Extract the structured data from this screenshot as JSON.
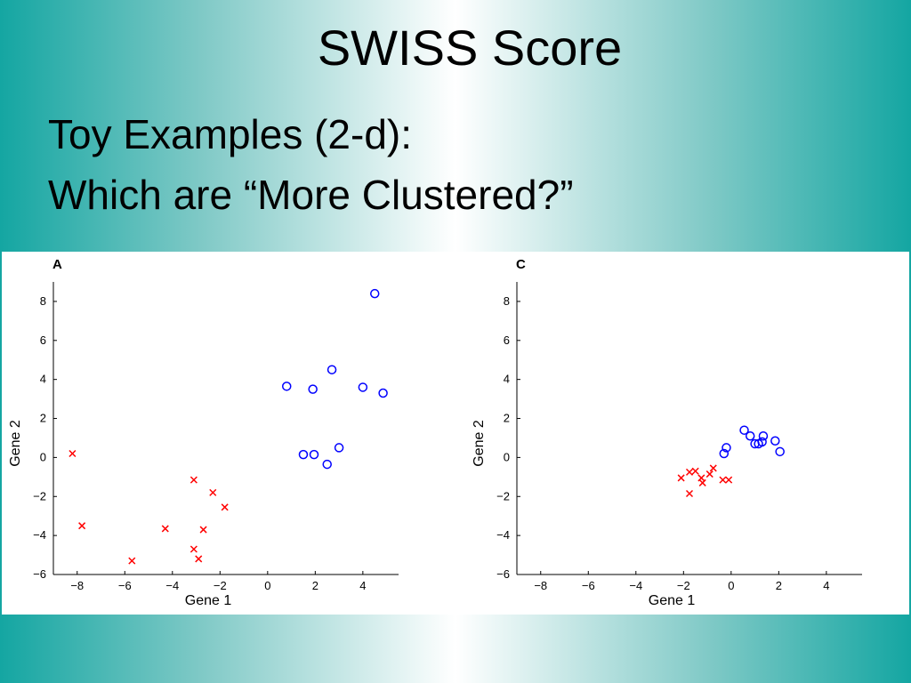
{
  "slide": {
    "title": "SWISS Score",
    "subtitle_line1": "Toy Examples  (2-d):",
    "subtitle_line2": "Which are “More Clustered?”"
  },
  "colors": {
    "cluster1": "#0000ff",
    "cluster2": "#ff0000",
    "background_edge": "#14a6a2"
  },
  "chart_data": [
    {
      "type": "scatter",
      "panel_label": "A",
      "xlabel": "Gene 1",
      "ylabel": "Gene 2",
      "xlim": [
        -9,
        5.5
      ],
      "ylim": [
        -6,
        9
      ],
      "xticks": [
        -8,
        -6,
        -4,
        -2,
        0,
        2,
        4
      ],
      "yticks": [
        -6,
        -4,
        -2,
        0,
        2,
        4,
        6,
        8
      ],
      "grid": false,
      "series": [
        {
          "marker": "circle",
          "color": "#0000ff",
          "points": [
            [
              4.5,
              8.4
            ],
            [
              0.8,
              3.65
            ],
            [
              1.9,
              3.5
            ],
            [
              2.7,
              4.5
            ],
            [
              4.0,
              3.6
            ],
            [
              4.85,
              3.3
            ],
            [
              1.5,
              0.15
            ],
            [
              1.95,
              0.15
            ],
            [
              2.5,
              -0.35
            ],
            [
              3.0,
              0.5
            ]
          ]
        },
        {
          "marker": "x",
          "color": "#ff0000",
          "points": [
            [
              -8.2,
              0.2
            ],
            [
              -7.8,
              -3.5
            ],
            [
              -5.7,
              -5.3
            ],
            [
              -4.3,
              -3.65
            ],
            [
              -3.1,
              -1.15
            ],
            [
              -2.3,
              -1.8
            ],
            [
              -1.8,
              -2.55
            ],
            [
              -2.7,
              -3.7
            ],
            [
              -3.1,
              -4.7
            ],
            [
              -2.9,
              -5.2
            ]
          ]
        }
      ]
    },
    {
      "type": "scatter",
      "panel_label": "C",
      "xlabel": "Gene 1",
      "ylabel": "Gene 2",
      "xlim": [
        -9,
        5.5
      ],
      "ylim": [
        -6,
        9
      ],
      "xticks": [
        -8,
        -6,
        -4,
        -2,
        0,
        2,
        4
      ],
      "yticks": [
        -6,
        -4,
        -2,
        0,
        2,
        4,
        6,
        8
      ],
      "grid": false,
      "series": [
        {
          "marker": "circle",
          "color": "#0000ff",
          "points": [
            [
              0.55,
              1.4
            ],
            [
              0.8,
              1.1
            ],
            [
              1.35,
              1.1
            ],
            [
              1.85,
              0.85
            ],
            [
              1.0,
              0.7
            ],
            [
              1.15,
              0.7
            ],
            [
              1.3,
              0.8
            ],
            [
              -0.2,
              0.5
            ],
            [
              -0.3,
              0.2
            ],
            [
              2.05,
              0.3
            ]
          ]
        },
        {
          "marker": "x",
          "color": "#ff0000",
          "points": [
            [
              -2.1,
              -1.05
            ],
            [
              -1.75,
              -0.75
            ],
            [
              -1.5,
              -0.7
            ],
            [
              -1.25,
              -1.05
            ],
            [
              -1.2,
              -1.3
            ],
            [
              -0.9,
              -0.85
            ],
            [
              -0.75,
              -0.55
            ],
            [
              -0.35,
              -1.15
            ],
            [
              -0.1,
              -1.15
            ],
            [
              -1.75,
              -1.85
            ]
          ]
        }
      ]
    }
  ]
}
